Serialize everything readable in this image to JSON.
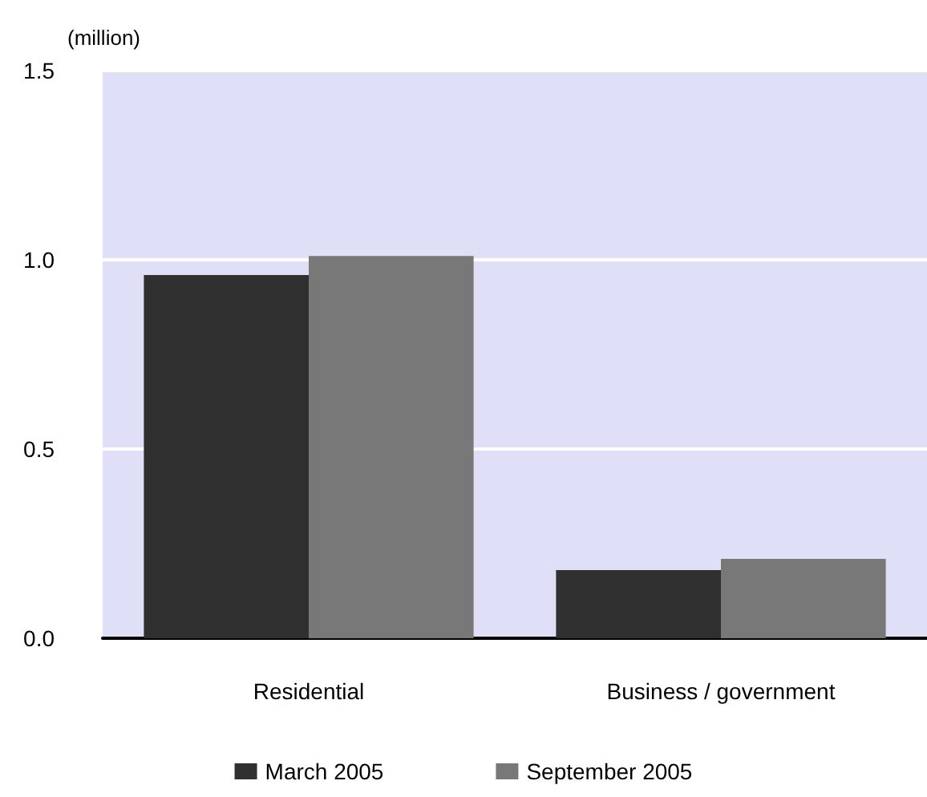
{
  "chart_data": {
    "type": "bar",
    "ylabel": "(million)",
    "categories": [
      "Residential",
      "Business / government"
    ],
    "series": [
      {
        "name": "March 2005",
        "color": "#303030",
        "values": [
          0.96,
          0.18
        ]
      },
      {
        "name": "September 2005",
        "color": "#787878",
        "values": [
          1.01,
          0.21
        ]
      }
    ],
    "ylim": [
      0,
      1.5
    ],
    "yticks": [
      {
        "value": 0,
        "label": "0.0"
      },
      {
        "value": 0.5,
        "label": "0.5"
      },
      {
        "value": 1,
        "label": "1.0"
      },
      {
        "value": 1.5,
        "label": "1.5"
      }
    ],
    "grid": "y",
    "legend": "bottom"
  }
}
